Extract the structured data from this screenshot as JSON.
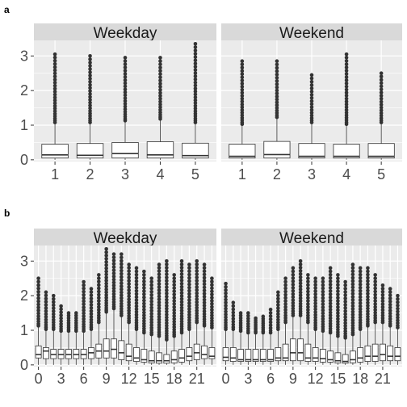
{
  "figure": {
    "panel_labels": [
      "a",
      "b"
    ]
  },
  "colors": {
    "panel_bg": "#ebebeb",
    "strip_bg": "#d9d9d9",
    "grid_major": "#ffffff",
    "box_fill": "#ffffff",
    "box_line": "#333333",
    "outlier": "#333333",
    "tick_text": "#4d4d4d"
  },
  "chart_data": [
    {
      "type": "boxplot",
      "panel_label": "a",
      "facets": [
        "Weekday",
        "Weekend"
      ],
      "x_categories": [
        "1",
        "2",
        "3",
        "4",
        "5"
      ],
      "yticks": [
        0,
        1,
        2,
        3
      ],
      "ylim": [
        -0.05,
        3.45
      ],
      "grid": true,
      "series": [
        {
          "facet": "Weekday",
          "boxes": [
            {
              "x": "1",
              "q1": 0.05,
              "median": 0.14,
              "q3": 0.45,
              "upper_whisker": 1.05,
              "outlier_max": 3.05
            },
            {
              "x": "2",
              "q1": 0.05,
              "median": 0.13,
              "q3": 0.47,
              "upper_whisker": 1.05,
              "outlier_max": 3.0
            },
            {
              "x": "3",
              "q1": 0.05,
              "median": 0.18,
              "q3": 0.5,
              "upper_whisker": 1.1,
              "outlier_max": 2.95
            },
            {
              "x": "4",
              "q1": 0.05,
              "median": 0.14,
              "q3": 0.52,
              "upper_whisker": 1.15,
              "outlier_max": 2.95
            },
            {
              "x": "5",
              "q1": 0.05,
              "median": 0.12,
              "q3": 0.48,
              "upper_whisker": 1.05,
              "outlier_max": 3.35
            }
          ]
        },
        {
          "facet": "Weekend",
          "boxes": [
            {
              "x": "1",
              "q1": 0.05,
              "median": 0.1,
              "q3": 0.45,
              "upper_whisker": 1.0,
              "outlier_max": 2.85
            },
            {
              "x": "2",
              "q1": 0.05,
              "median": 0.15,
              "q3": 0.53,
              "upper_whisker": 1.2,
              "outlier_max": 2.85
            },
            {
              "x": "3",
              "q1": 0.05,
              "median": 0.1,
              "q3": 0.47,
              "upper_whisker": 1.05,
              "outlier_max": 2.45
            },
            {
              "x": "4",
              "q1": 0.05,
              "median": 0.1,
              "q3": 0.45,
              "upper_whisker": 1.0,
              "outlier_max": 3.05
            },
            {
              "x": "5",
              "q1": 0.05,
              "median": 0.1,
              "q3": 0.47,
              "upper_whisker": 1.05,
              "outlier_max": 2.5
            }
          ]
        }
      ]
    },
    {
      "type": "boxplot",
      "panel_label": "b",
      "facets": [
        "Weekday",
        "Weekend"
      ],
      "x_categories": [
        "0",
        "1",
        "2",
        "3",
        "4",
        "5",
        "6",
        "7",
        "8",
        "9",
        "10",
        "11",
        "12",
        "13",
        "14",
        "15",
        "16",
        "17",
        "18",
        "19",
        "20",
        "21",
        "22",
        "23"
      ],
      "xtick_labels": [
        "0",
        "3",
        "6",
        "9",
        "12",
        "15",
        "18",
        "21"
      ],
      "yticks": [
        0,
        1,
        2,
        3
      ],
      "ylim": [
        -0.05,
        3.45
      ],
      "grid": true,
      "series": [
        {
          "facet": "Weekday",
          "boxes": [
            {
              "x": "0",
              "q1": 0.2,
              "median": 0.3,
              "q3": 0.55,
              "upper_whisker": 1.1,
              "outlier_max": 2.5
            },
            {
              "x": "1",
              "q1": 0.18,
              "median": 0.4,
              "q3": 0.5,
              "upper_whisker": 1.0,
              "outlier_max": 2.1
            },
            {
              "x": "2",
              "q1": 0.18,
              "median": 0.3,
              "q3": 0.45,
              "upper_whisker": 1.0,
              "outlier_max": 2.0
            },
            {
              "x": "3",
              "q1": 0.18,
              "median": 0.3,
              "q3": 0.45,
              "upper_whisker": 0.95,
              "outlier_max": 1.7
            },
            {
              "x": "4",
              "q1": 0.18,
              "median": 0.3,
              "q3": 0.45,
              "upper_whisker": 0.95,
              "outlier_max": 1.5
            },
            {
              "x": "5",
              "q1": 0.18,
              "median": 0.3,
              "q3": 0.45,
              "upper_whisker": 0.95,
              "outlier_max": 1.5
            },
            {
              "x": "6",
              "q1": 0.18,
              "median": 0.3,
              "q3": 0.45,
              "upper_whisker": 0.95,
              "outlier_max": 2.4
            },
            {
              "x": "7",
              "q1": 0.18,
              "median": 0.35,
              "q3": 0.5,
              "upper_whisker": 1.0,
              "outlier_max": 2.2
            },
            {
              "x": "8",
              "q1": 0.2,
              "median": 0.4,
              "q3": 0.6,
              "upper_whisker": 1.2,
              "outlier_max": 2.6
            },
            {
              "x": "9",
              "q1": 0.2,
              "median": 0.4,
              "q3": 0.75,
              "upper_whisker": 1.5,
              "outlier_max": 3.35
            },
            {
              "x": "10",
              "q1": 0.2,
              "median": 0.45,
              "q3": 0.75,
              "upper_whisker": 1.6,
              "outlier_max": 3.2
            },
            {
              "x": "11",
              "q1": 0.15,
              "median": 0.35,
              "q3": 0.7,
              "upper_whisker": 1.4,
              "outlier_max": 3.2
            },
            {
              "x": "12",
              "q1": 0.12,
              "median": 0.25,
              "q3": 0.6,
              "upper_whisker": 1.2,
              "outlier_max": 2.9
            },
            {
              "x": "13",
              "q1": 0.1,
              "median": 0.2,
              "q3": 0.5,
              "upper_whisker": 1.0,
              "outlier_max": 2.8
            },
            {
              "x": "14",
              "q1": 0.08,
              "median": 0.15,
              "q3": 0.45,
              "upper_whisker": 0.9,
              "outlier_max": 2.7
            },
            {
              "x": "15",
              "q1": 0.06,
              "median": 0.12,
              "q3": 0.4,
              "upper_whisker": 0.85,
              "outlier_max": 2.5
            },
            {
              "x": "16",
              "q1": 0.05,
              "median": 0.12,
              "q3": 0.35,
              "upper_whisker": 0.8,
              "outlier_max": 2.9
            },
            {
              "x": "17",
              "q1": 0.05,
              "median": 0.12,
              "q3": 0.3,
              "upper_whisker": 0.7,
              "outlier_max": 3.0
            },
            {
              "x": "18",
              "q1": 0.06,
              "median": 0.15,
              "q3": 0.4,
              "upper_whisker": 0.8,
              "outlier_max": 2.6
            },
            {
              "x": "19",
              "q1": 0.08,
              "median": 0.2,
              "q3": 0.45,
              "upper_whisker": 0.9,
              "outlier_max": 3.0
            },
            {
              "x": "20",
              "q1": 0.12,
              "median": 0.25,
              "q3": 0.5,
              "upper_whisker": 1.0,
              "outlier_max": 2.9
            },
            {
              "x": "21",
              "q1": 0.15,
              "median": 0.35,
              "q3": 0.6,
              "upper_whisker": 1.2,
              "outlier_max": 3.0
            },
            {
              "x": "22",
              "q1": 0.18,
              "median": 0.3,
              "q3": 0.55,
              "upper_whisker": 1.1,
              "outlier_max": 2.9
            },
            {
              "x": "23",
              "q1": 0.18,
              "median": 0.25,
              "q3": 0.5,
              "upper_whisker": 1.05,
              "outlier_max": 2.5
            }
          ]
        },
        {
          "facet": "Weekend",
          "boxes": [
            {
              "x": "0",
              "q1": 0.12,
              "median": 0.22,
              "q3": 0.5,
              "upper_whisker": 1.0,
              "outlier_max": 2.35
            },
            {
              "x": "1",
              "q1": 0.1,
              "median": 0.2,
              "q3": 0.5,
              "upper_whisker": 1.0,
              "outlier_max": 1.8
            },
            {
              "x": "2",
              "q1": 0.1,
              "median": 0.15,
              "q3": 0.45,
              "upper_whisker": 0.95,
              "outlier_max": 1.5
            },
            {
              "x": "3",
              "q1": 0.1,
              "median": 0.15,
              "q3": 0.45,
              "upper_whisker": 0.9,
              "outlier_max": 1.5
            },
            {
              "x": "4",
              "q1": 0.1,
              "median": 0.15,
              "q3": 0.45,
              "upper_whisker": 0.9,
              "outlier_max": 1.35
            },
            {
              "x": "5",
              "q1": 0.1,
              "median": 0.15,
              "q3": 0.45,
              "upper_whisker": 0.9,
              "outlier_max": 1.4
            },
            {
              "x": "6",
              "q1": 0.1,
              "median": 0.15,
              "q3": 0.45,
              "upper_whisker": 0.9,
              "outlier_max": 1.6
            },
            {
              "x": "7",
              "q1": 0.12,
              "median": 0.2,
              "q3": 0.5,
              "upper_whisker": 1.0,
              "outlier_max": 2.1
            },
            {
              "x": "8",
              "q1": 0.12,
              "median": 0.2,
              "q3": 0.6,
              "upper_whisker": 1.2,
              "outlier_max": 2.5
            },
            {
              "x": "9",
              "q1": 0.12,
              "median": 0.35,
              "q3": 0.75,
              "upper_whisker": 1.4,
              "outlier_max": 2.8
            },
            {
              "x": "10",
              "q1": 0.12,
              "median": 0.35,
              "q3": 0.75,
              "upper_whisker": 1.4,
              "outlier_max": 3.0
            },
            {
              "x": "11",
              "q1": 0.1,
              "median": 0.2,
              "q3": 0.6,
              "upper_whisker": 1.2,
              "outlier_max": 2.6
            },
            {
              "x": "12",
              "q1": 0.1,
              "median": 0.2,
              "q3": 0.5,
              "upper_whisker": 1.0,
              "outlier_max": 2.5
            },
            {
              "x": "13",
              "q1": 0.08,
              "median": 0.18,
              "q3": 0.45,
              "upper_whisker": 0.95,
              "outlier_max": 2.5
            },
            {
              "x": "14",
              "q1": 0.08,
              "median": 0.15,
              "q3": 0.4,
              "upper_whisker": 0.9,
              "outlier_max": 2.8
            },
            {
              "x": "15",
              "q1": 0.06,
              "median": 0.12,
              "q3": 0.35,
              "upper_whisker": 0.8,
              "outlier_max": 2.6
            },
            {
              "x": "16",
              "q1": 0.05,
              "median": 0.1,
              "q3": 0.3,
              "upper_whisker": 0.75,
              "outlier_max": 2.4
            },
            {
              "x": "17",
              "q1": 0.06,
              "median": 0.15,
              "q3": 0.4,
              "upper_whisker": 0.85,
              "outlier_max": 2.9
            },
            {
              "x": "18",
              "q1": 0.08,
              "median": 0.2,
              "q3": 0.5,
              "upper_whisker": 1.0,
              "outlier_max": 2.8
            },
            {
              "x": "19",
              "q1": 0.1,
              "median": 0.25,
              "q3": 0.55,
              "upper_whisker": 1.1,
              "outlier_max": 2.8
            },
            {
              "x": "20",
              "q1": 0.1,
              "median": 0.25,
              "q3": 0.6,
              "upper_whisker": 1.2,
              "outlier_max": 2.6
            },
            {
              "x": "21",
              "q1": 0.12,
              "median": 0.3,
              "q3": 0.6,
              "upper_whisker": 1.2,
              "outlier_max": 2.3
            },
            {
              "x": "22",
              "q1": 0.12,
              "median": 0.25,
              "q3": 0.55,
              "upper_whisker": 1.1,
              "outlier_max": 2.2
            },
            {
              "x": "23",
              "q1": 0.12,
              "median": 0.25,
              "q3": 0.5,
              "upper_whisker": 1.05,
              "outlier_max": 2.0
            }
          ]
        }
      ]
    }
  ]
}
